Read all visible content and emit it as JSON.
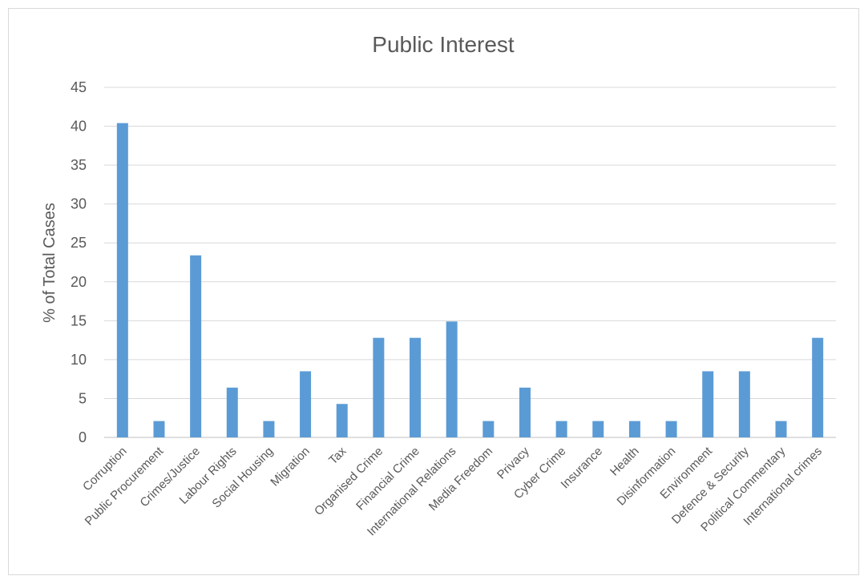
{
  "chart_data": {
    "type": "bar",
    "title": "Public Interest",
    "xlabel": "",
    "ylabel": "% of Total Cases",
    "ylim": [
      0,
      45
    ],
    "yticks": [
      0,
      5,
      10,
      15,
      20,
      25,
      30,
      35,
      40,
      45
    ],
    "grid": true,
    "bar_color": "#5b9bd5",
    "categories": [
      "Corruption",
      "Public Procurement",
      "Crimes/Justice",
      "Labour Rights",
      "Social Housing",
      "Migration",
      "Tax",
      "Organised Crime",
      "Financial Crime",
      "International Relations",
      "Media Freedom",
      "Privacy",
      "Cyber Crime",
      "Insurance",
      "Health",
      "Disinformation",
      "Environment",
      "Defence & Security",
      "Political Commentary",
      "International crimes"
    ],
    "values": [
      40.4,
      2.1,
      23.4,
      6.4,
      2.1,
      8.5,
      4.3,
      12.8,
      12.8,
      14.9,
      2.1,
      6.4,
      2.1,
      2.1,
      2.1,
      2.1,
      8.5,
      8.5,
      2.1,
      12.8
    ]
  }
}
